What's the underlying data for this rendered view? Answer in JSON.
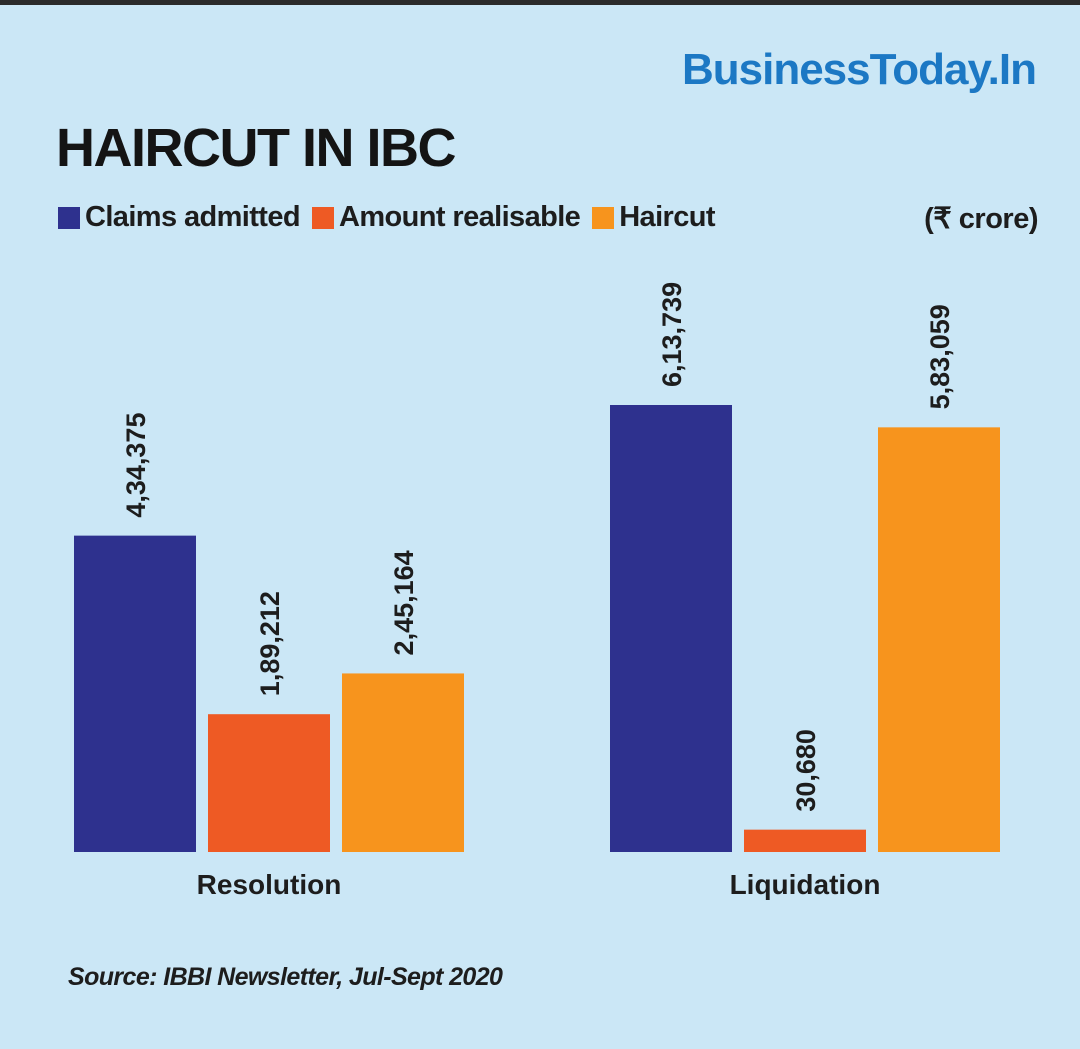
{
  "brand": "BusinessToday.In",
  "chart_data": {
    "type": "bar",
    "title": "HAIRCUT IN IBC",
    "unit": "(₹ crore)",
    "categories": [
      "Resolution",
      "Liquidation"
    ],
    "series": [
      {
        "name": "Claims admitted",
        "color": "#2e318e",
        "values": [
          434375,
          613739
        ],
        "labels": [
          "4,34,375",
          "6,13,739"
        ]
      },
      {
        "name": "Amount realisable",
        "color": "#ee5a24",
        "values": [
          189212,
          30680
        ],
        "labels": [
          "1,89,212",
          "30,680"
        ]
      },
      {
        "name": "Haircut",
        "color": "#f7941d",
        "values": [
          245164,
          583059
        ],
        "labels": [
          "2,45,164",
          "5,83,059"
        ]
      }
    ],
    "ylim": [
      0,
      613739
    ],
    "grid": false,
    "legend_position": "top-left"
  },
  "source": "Source: IBBI Newsletter, Jul-Sept 2020"
}
